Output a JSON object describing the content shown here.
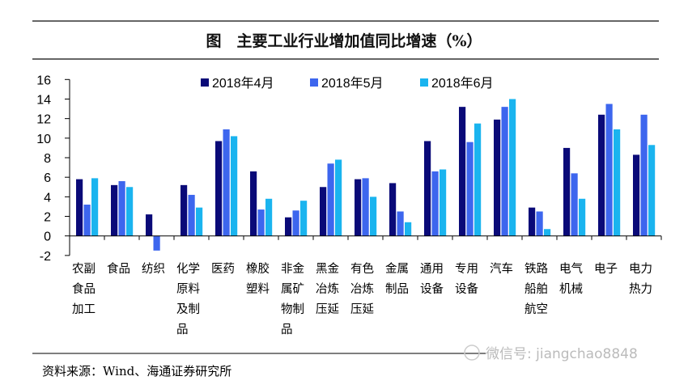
{
  "chart_data": {
    "type": "bar",
    "title": "图　主要工业行业增加值同比增速（%）",
    "xlabel": "",
    "ylabel": "",
    "ylim": [
      -2,
      16
    ],
    "yticks": [
      -2,
      0,
      2,
      4,
      6,
      8,
      10,
      12,
      14,
      16
    ],
    "grid": false,
    "legend_position": "top-center",
    "categories": [
      [
        "农副",
        "食品",
        "加工"
      ],
      [
        "食品"
      ],
      [
        "纺织"
      ],
      [
        "化学",
        "原料",
        "及制",
        "品"
      ],
      [
        "医药"
      ],
      [
        "橡胶",
        "塑料"
      ],
      [
        "非金",
        "属矿",
        "物制",
        "品"
      ],
      [
        "黑金",
        "冶炼",
        "压延"
      ],
      [
        "有色",
        "冶炼",
        "压延"
      ],
      [
        "金属",
        "制品"
      ],
      [
        "通用",
        "设备"
      ],
      [
        "专用",
        "设备"
      ],
      [
        "汽车"
      ],
      [
        "铁路",
        "船舶",
        "航空"
      ],
      [
        "电气",
        "机械"
      ],
      [
        "电子"
      ],
      [
        "电力",
        "热力"
      ]
    ],
    "series": [
      {
        "name": "2018年4月",
        "color": "#0a0a78",
        "values": [
          5.8,
          5.2,
          2.2,
          5.2,
          9.7,
          6.6,
          1.9,
          5.0,
          5.8,
          5.4,
          9.7,
          13.2,
          11.9,
          2.9,
          9.0,
          12.4,
          8.3
        ]
      },
      {
        "name": "2018年5月",
        "color": "#3d66ee",
        "values": [
          3.2,
          5.6,
          -1.5,
          4.2,
          10.9,
          2.7,
          2.6,
          7.4,
          5.9,
          2.5,
          6.6,
          9.6,
          13.2,
          2.5,
          6.4,
          13.5,
          12.4
        ]
      },
      {
        "name": "2018年6月",
        "color": "#1ab4ef",
        "values": [
          5.9,
          5.0,
          0.0,
          2.9,
          10.2,
          3.8,
          3.6,
          7.8,
          4.0,
          1.4,
          6.8,
          11.5,
          14.0,
          0.7,
          3.8,
          10.9,
          9.3
        ]
      }
    ]
  },
  "footer": {
    "source": "资料来源：Wind、海通证券研究所",
    "watermark": "微信号: jiangchao8848"
  }
}
